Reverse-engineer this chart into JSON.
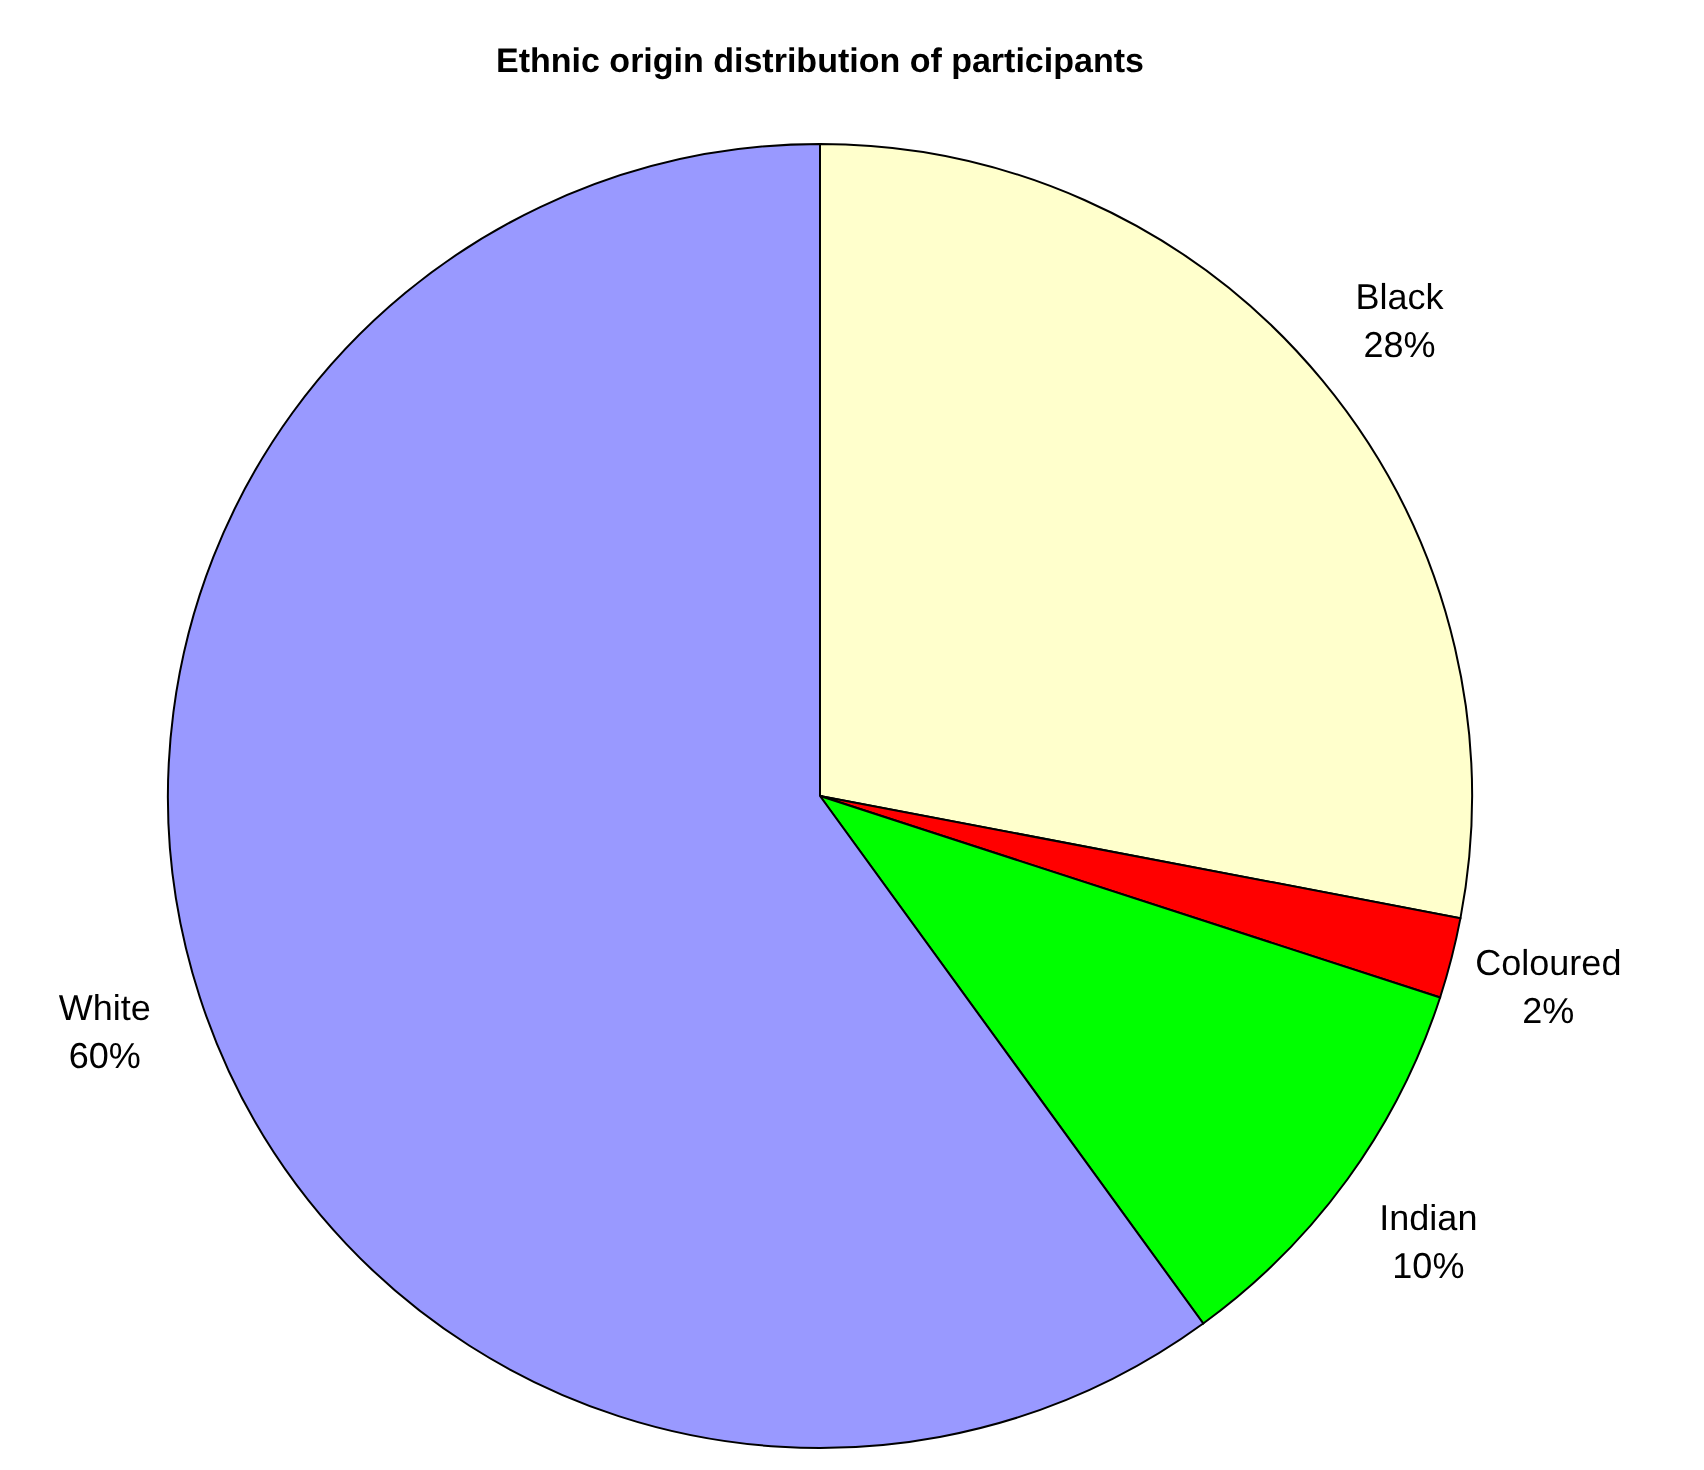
{
  "chart_data": {
    "type": "pie",
    "title": "Ethnic origin distribution of participants",
    "categories": [
      "Black",
      "Coloured",
      "Indian",
      "White"
    ],
    "values": [
      28,
      2,
      10,
      60
    ],
    "colors": [
      "#ffffcc",
      "#ff0000",
      "#00ff00",
      "#9999ff"
    ],
    "value_labels": [
      "28%",
      "2%",
      "10%",
      "60%"
    ]
  }
}
